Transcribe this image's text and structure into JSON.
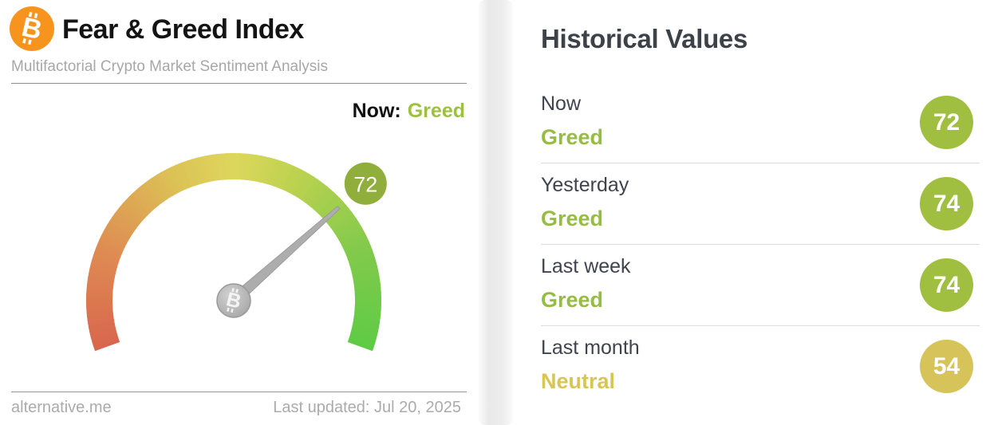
{
  "header": {
    "title": "Fear & Greed Index",
    "subtitle": "Multifactorial Crypto Market Sentiment Analysis",
    "bitcoin_glyph": "B"
  },
  "now": {
    "label": "Now:",
    "sentiment": "Greed"
  },
  "footer": {
    "site": "alternative.me",
    "last_updated": "Last updated: Jul 20, 2025"
  },
  "historical": {
    "title": "Historical Values",
    "rows": [
      {
        "period": "Now",
        "sentiment": "Greed",
        "value": "72",
        "badge_color": "#a0bf40",
        "sentiment_color": "#97bc44"
      },
      {
        "period": "Yesterday",
        "sentiment": "Greed",
        "value": "74",
        "badge_color": "#a0bf40",
        "sentiment_color": "#97bc44"
      },
      {
        "period": "Last week",
        "sentiment": "Greed",
        "value": "74",
        "badge_color": "#a0bf40",
        "sentiment_color": "#97bc44"
      },
      {
        "period": "Last month",
        "sentiment": "Neutral",
        "value": "54",
        "badge_color": "#d6c45a",
        "sentiment_color": "#d8c553"
      }
    ]
  },
  "colors": {
    "bitcoin_orange": "#f7941d",
    "gauge_badge_green": "#8fae3b",
    "needle_gray": "#b0b0b0",
    "hub_gray": "#b5b5b5"
  },
  "chart_data": {
    "type": "gauge",
    "title": "Fear & Greed Index",
    "min": 0,
    "max": 100,
    "value": 72,
    "label": "Greed",
    "start_deg": 200,
    "end_deg": -20,
    "color_stops": [
      {
        "at": 0.0,
        "color": "#d8664e"
      },
      {
        "at": 0.18,
        "color": "#de8a52"
      },
      {
        "at": 0.38,
        "color": "#dcc156"
      },
      {
        "at": 0.5,
        "color": "#ddd75c"
      },
      {
        "at": 0.62,
        "color": "#bdd24f"
      },
      {
        "at": 0.8,
        "color": "#84ca4c"
      },
      {
        "at": 1.0,
        "color": "#5ecb45"
      }
    ],
    "badge": {
      "value": "72",
      "color": "#8fae3b"
    },
    "historical": [
      {
        "period": "Now",
        "value": 72,
        "label": "Greed"
      },
      {
        "period": "Yesterday",
        "value": 74,
        "label": "Greed"
      },
      {
        "period": "Last week",
        "value": 74,
        "label": "Greed"
      },
      {
        "period": "Last month",
        "value": 54,
        "label": "Neutral"
      }
    ]
  }
}
